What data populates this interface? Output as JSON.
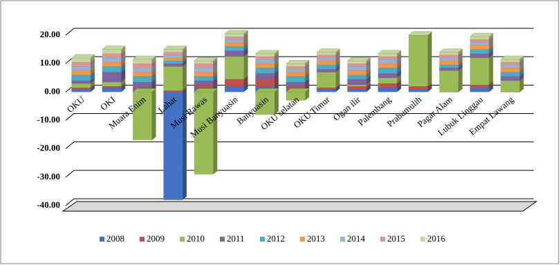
{
  "chart_data": {
    "type": "stacked-bar",
    "categories": [
      "OKU",
      "OKI",
      "Muara Enim",
      "Lahat",
      "Musi Rawas",
      "Musi Banyuasin",
      "Banyuasin",
      "OKU selatan",
      "OKU Timur",
      "Ogan ilir",
      "Palembang",
      "Prabumulih",
      "Pagar Alam",
      "Lubuk Linggau",
      "Empat Lawang"
    ],
    "series": [
      {
        "name": "2008",
        "color": "#4472c4",
        "values": [
          1,
          1.5,
          1,
          -38,
          1.5,
          2,
          2,
          1,
          1,
          1,
          1.5,
          1,
          0,
          1.5,
          0
        ]
      },
      {
        "name": "2009",
        "color": "#c0504d",
        "values": [
          0.5,
          0.5,
          0.5,
          0.5,
          1,
          2.5,
          2.5,
          1,
          0.5,
          1,
          1.5,
          1,
          0,
          1,
          0
        ]
      },
      {
        "name": "2010",
        "color": "#9bbb59",
        "values": [
          1.5,
          1.5,
          -17,
          8.5,
          -29,
          8,
          -8,
          -3,
          5.5,
          0.5,
          2,
          18,
          7.5,
          9.5,
          4
        ]
      },
      {
        "name": "2011",
        "color": "#8064a2",
        "values": [
          1,
          3.5,
          2,
          1,
          1.5,
          2,
          2,
          1.5,
          1,
          2,
          1.5,
          0,
          1,
          1.5,
          1.5
        ]
      },
      {
        "name": "2012",
        "color": "#4bacc6",
        "values": [
          2,
          2,
          2,
          1,
          1.5,
          1.5,
          2,
          2,
          1.5,
          1.5,
          2,
          0,
          1,
          1.5,
          1.5
        ]
      },
      {
        "name": "2013",
        "color": "#f79646",
        "values": [
          1.5,
          1.5,
          1.5,
          1,
          1.5,
          1.5,
          1.5,
          1.5,
          1.5,
          1.5,
          1.5,
          0,
          1.5,
          1.5,
          1.5
        ]
      },
      {
        "name": "2014",
        "color": "#95b3d7",
        "values": [
          1.5,
          1.5,
          1.5,
          1,
          1.5,
          1,
          1.5,
          1,
          1,
          1.5,
          1.5,
          0,
          1,
          1,
          1
        ]
      },
      {
        "name": "2015",
        "color": "#d99694",
        "values": [
          1.5,
          1.5,
          1.5,
          1,
          1.5,
          1,
          1,
          1,
          1,
          1,
          1,
          0,
          1,
          1,
          1
        ]
      },
      {
        "name": "2016",
        "color": "#c3d69b",
        "values": [
          1.5,
          1.5,
          1.5,
          1,
          1,
          1,
          1,
          1,
          1,
          1,
          1,
          0,
          1,
          1,
          1
        ]
      }
    ],
    "ylim": [
      -40,
      20
    ],
    "yticks": [
      {
        "value": 20,
        "label": "20.00"
      },
      {
        "value": 10,
        "label": "10.00"
      },
      {
        "value": 0,
        "label": "0.00"
      },
      {
        "value": -10,
        "label": "-10.00"
      },
      {
        "value": -20,
        "label": "-20.00"
      },
      {
        "value": -30,
        "label": "-30.00"
      },
      {
        "value": -40,
        "label": "-40.00"
      }
    ],
    "grid": true,
    "legend": "bottom"
  }
}
